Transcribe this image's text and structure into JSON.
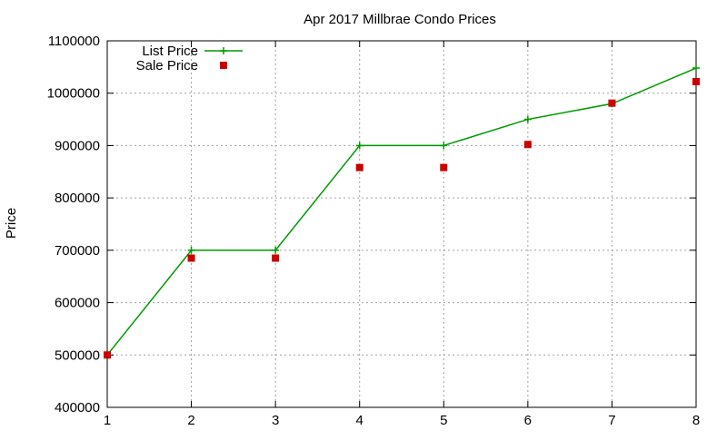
{
  "chart_data": {
    "type": "line",
    "title": "Apr 2017 Millbrae Condo Prices",
    "xlabel": "",
    "ylabel": "Price",
    "x": [
      1,
      2,
      3,
      4,
      5,
      6,
      7,
      8
    ],
    "xlim": [
      1,
      8
    ],
    "ylim": [
      400000,
      1100000
    ],
    "xticks": [
      1,
      2,
      3,
      4,
      5,
      6,
      7,
      8
    ],
    "yticks": [
      400000,
      500000,
      600000,
      700000,
      800000,
      900000,
      1000000,
      1100000
    ],
    "grid": true,
    "legend_position": "top-left",
    "series": [
      {
        "name": "List Price",
        "style": "line-with-plus-markers",
        "color": "#009900",
        "values": [
          500000,
          700000,
          700000,
          900000,
          900000,
          950000,
          980000,
          1048000
        ]
      },
      {
        "name": "Sale Price",
        "style": "square-markers",
        "color": "#cc0000",
        "values": [
          500000,
          685000,
          685000,
          858000,
          858000,
          902000,
          981000,
          1022000
        ]
      }
    ]
  }
}
